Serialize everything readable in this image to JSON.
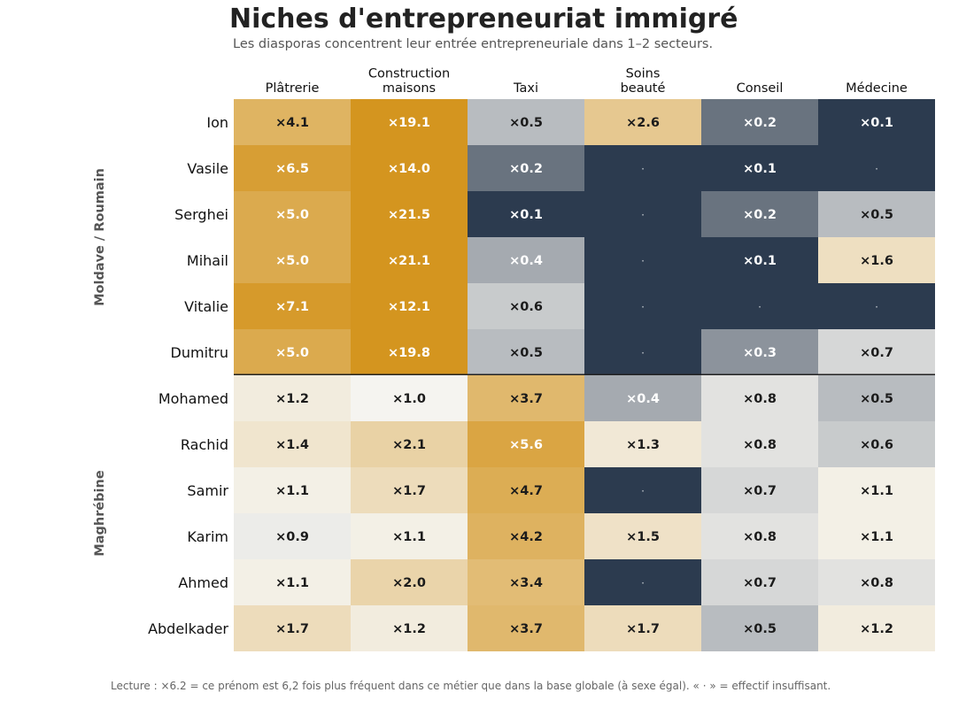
{
  "title": "Niches d'entrepreneuriat immigré",
  "subtitle": "Les diasporas concentrent leur entrée entrepreneuriale dans 1–2 secteurs.",
  "footnote": "Lecture : ×6.2 = ce prénom est 6,2 fois plus fréquent dans ce métier que dans la base globale (à sexe égal). « · » = effectif insuffisant.",
  "colors": {
    "high": "#d4951f",
    "neutral": "#f5f4f0",
    "low": "#2c3b4f",
    "separator": "#222222"
  },
  "chart_data": {
    "type": "heatmap",
    "columns": [
      [
        "Plâtrerie"
      ],
      [
        "Construction",
        "maisons"
      ],
      [
        "Taxi"
      ],
      [
        "Soins",
        "beauté"
      ],
      [
        "Conseil"
      ],
      [
        "Médecine"
      ]
    ],
    "groups": [
      {
        "name": "Moldave / Roumain",
        "rows": [
          "Ion",
          "Vasile",
          "Serghei",
          "Mihail",
          "Vitalie",
          "Dumitru"
        ]
      },
      {
        "name": "Maghrébine",
        "rows": [
          "Mohamed",
          "Rachid",
          "Samir",
          "Karim",
          "Ahmed",
          "Abdelkader"
        ]
      }
    ],
    "missing_label": "·",
    "values": [
      [
        4.1,
        19.1,
        0.5,
        2.6,
        0.2,
        0.1
      ],
      [
        6.5,
        14.0,
        0.2,
        null,
        0.1,
        null
      ],
      [
        5.0,
        21.5,
        0.1,
        null,
        0.2,
        0.5
      ],
      [
        5.0,
        21.1,
        0.4,
        null,
        0.1,
        1.6
      ],
      [
        7.1,
        12.1,
        0.6,
        null,
        null,
        null
      ],
      [
        5.0,
        19.8,
        0.5,
        null,
        0.3,
        0.7
      ],
      [
        1.2,
        1.0,
        3.7,
        0.4,
        0.8,
        0.5
      ],
      [
        1.4,
        2.1,
        5.6,
        1.3,
        0.8,
        0.6
      ],
      [
        1.1,
        1.7,
        4.7,
        null,
        0.7,
        1.1
      ],
      [
        0.9,
        1.1,
        4.2,
        1.5,
        0.8,
        1.1
      ],
      [
        1.1,
        2.0,
        3.4,
        null,
        0.7,
        0.8
      ],
      [
        1.7,
        1.2,
        3.7,
        1.7,
        0.5,
        1.2
      ]
    ]
  }
}
